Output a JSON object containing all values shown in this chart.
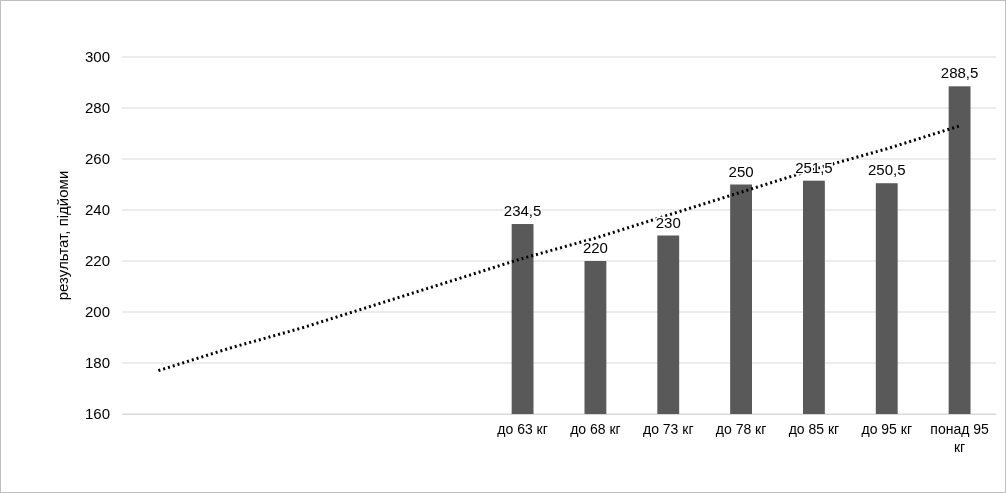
{
  "chart_data": {
    "type": "bar",
    "ylabel": "результат, підйоми",
    "categories": [
      null,
      null,
      null,
      null,
      null,
      "до 63 кг",
      "до 68 кг",
      "до 73 кг",
      "до 78 кг",
      "до 85 кг",
      "до 95 кг",
      "понад 95 кг"
    ],
    "ylim": [
      160,
      300
    ],
    "yticks": [
      160,
      180,
      200,
      220,
      240,
      260,
      280,
      300
    ],
    "grid": "y",
    "series": [
      {
        "color": "#595959",
        "values": [
          null,
          null,
          null,
          null,
          null,
          234.5,
          220,
          230,
          250,
          251.5,
          250.5,
          288.5
        ],
        "value_labels": [
          null,
          null,
          null,
          null,
          null,
          "234,5",
          "220",
          "230",
          "250",
          "251,5",
          "250,5",
          "288,5"
        ]
      },
      {
        "type": "line",
        "color": "#000000",
        "line_style": "dotted",
        "values": [
          177,
          186,
          194,
          203,
          212,
          221,
          229,
          238,
          247,
          256,
          264,
          273
        ]
      }
    ]
  }
}
